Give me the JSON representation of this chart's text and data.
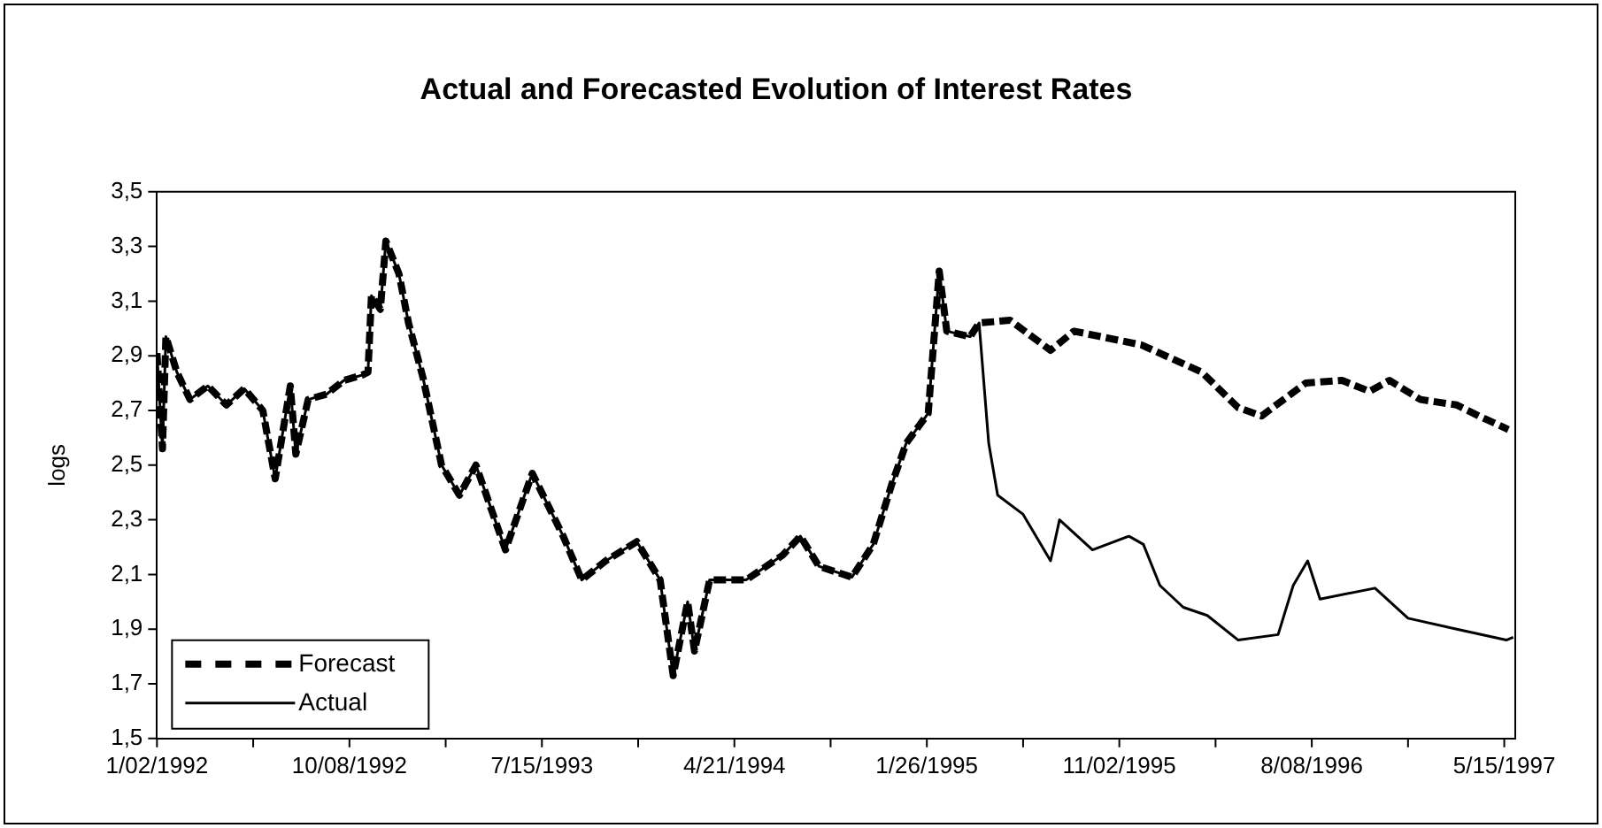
{
  "chart_data": {
    "type": "line",
    "title": "Actual and Forecasted Evolution of Interest Rates",
    "ylabel": "logs",
    "xlim": [
      "1992-01-02",
      "1997-05-31"
    ],
    "xticks": [
      {
        "value": "1992-01-02",
        "label": "1/02/1992"
      },
      {
        "value": "1992-05-21",
        "label": null
      },
      {
        "value": "1992-10-08",
        "label": "10/08/1992"
      },
      {
        "value": "1993-02-25",
        "label": null
      },
      {
        "value": "1993-07-15",
        "label": "7/15/1993"
      },
      {
        "value": "1993-12-02",
        "label": null
      },
      {
        "value": "1994-04-21",
        "label": "4/21/1994"
      },
      {
        "value": "1994-09-08",
        "label": null
      },
      {
        "value": "1995-01-26",
        "label": "1/26/1995"
      },
      {
        "value": "1995-06-15",
        "label": null
      },
      {
        "value": "1995-11-02",
        "label": "11/02/1995"
      },
      {
        "value": "1996-03-21",
        "label": null
      },
      {
        "value": "1996-08-08",
        "label": "8/08/1996"
      },
      {
        "value": "1996-12-26",
        "label": null
      },
      {
        "value": "1997-05-15",
        "label": "5/15/1997"
      }
    ],
    "ylim": [
      1.5,
      3.5
    ],
    "yticks": [
      {
        "value": 1.5,
        "label": "1,5"
      },
      {
        "value": 1.7,
        "label": "1,7"
      },
      {
        "value": 1.9,
        "label": "1,9"
      },
      {
        "value": 2.1,
        "label": "2,1"
      },
      {
        "value": 2.3,
        "label": "2,3"
      },
      {
        "value": 2.5,
        "label": "2,5"
      },
      {
        "value": 2.7,
        "label": "2,7"
      },
      {
        "value": 2.9,
        "label": "2,9"
      },
      {
        "value": 3.1,
        "label": "3,1"
      },
      {
        "value": 3.3,
        "label": "3,3"
      },
      {
        "value": 3.5,
        "label": "3,5"
      }
    ],
    "grid": false,
    "legend": "bottom left",
    "marker": "none",
    "series": [
      {
        "name": "Forecast",
        "color": "#000000",
        "line_style": "dashed",
        "x": [
          "1992-01-02",
          "1992-01-10",
          "1992-01-15",
          "1992-01-31",
          "1992-02-19",
          "1992-03-16",
          "1992-04-12",
          "1992-05-08",
          "1992-06-04",
          "1992-06-22",
          "1992-07-14",
          "1992-07-22",
          "1992-08-09",
          "1992-09-05",
          "1992-09-30",
          "1992-10-27",
          "1992-11-04",
          "1992-11-09",
          "1992-11-22",
          "1992-11-30",
          "1992-12-19",
          "1993-01-02",
          "1993-01-23",
          "1993-02-19",
          "1993-03-17",
          "1993-04-10",
          "1993-05-23",
          "1993-07-01",
          "1993-08-15",
          "1993-09-11",
          "1993-10-16",
          "1993-11-30",
          "1994-01-03",
          "1994-01-22",
          "1994-02-12",
          "1994-02-22",
          "1994-03-16",
          "1994-05-08",
          "1994-06-30",
          "1994-07-26",
          "1994-08-22",
          "1994-10-09",
          "1994-11-09",
          "1994-12-06",
          "1994-12-27",
          "1995-01-28",
          "1995-02-13",
          "1995-02-24",
          "1995-03-30",
          "1995-04-12",
          "1995-05-27",
          "1995-07-25",
          "1995-08-28",
          "1995-12-04",
          "1996-03-01",
          "1996-04-23",
          "1996-05-27",
          "1996-07-30",
          "1996-09-21",
          "1996-10-31",
          "1996-11-29",
          "1997-01-13",
          "1997-03-07",
          "1997-04-08",
          "1997-05-21"
        ],
        "values": [
          2.91,
          2.56,
          2.97,
          2.84,
          2.74,
          2.79,
          2.72,
          2.78,
          2.7,
          2.45,
          2.79,
          2.54,
          2.74,
          2.76,
          2.81,
          2.83,
          2.84,
          3.12,
          3.07,
          3.32,
          3.2,
          3.02,
          2.82,
          2.5,
          2.39,
          2.5,
          2.19,
          2.47,
          2.24,
          2.08,
          2.15,
          2.22,
          2.08,
          1.73,
          2.0,
          1.82,
          2.08,
          2.08,
          2.17,
          2.24,
          2.13,
          2.09,
          2.21,
          2.43,
          2.58,
          2.69,
          3.21,
          2.99,
          2.97,
          3.02,
          3.03,
          2.92,
          2.99,
          2.94,
          2.84,
          2.71,
          2.68,
          2.8,
          2.81,
          2.77,
          2.81,
          2.74,
          2.72,
          2.68,
          2.63
        ]
      },
      {
        "name": "Actual",
        "color": "#000000",
        "line_style": "solid",
        "x": [
          "1992-01-02",
          "1992-01-10",
          "1992-01-15",
          "1992-01-31",
          "1992-02-19",
          "1992-03-16",
          "1992-04-12",
          "1992-05-08",
          "1992-06-04",
          "1992-06-22",
          "1992-07-14",
          "1992-07-22",
          "1992-08-09",
          "1992-09-05",
          "1992-09-30",
          "1992-10-27",
          "1992-11-04",
          "1992-11-09",
          "1992-11-22",
          "1992-11-30",
          "1992-12-19",
          "1993-01-02",
          "1993-01-23",
          "1993-02-19",
          "1993-03-17",
          "1993-04-10",
          "1993-05-23",
          "1993-07-01",
          "1993-08-15",
          "1993-09-11",
          "1993-10-16",
          "1993-11-30",
          "1994-01-03",
          "1994-01-22",
          "1994-02-12",
          "1994-02-22",
          "1994-03-16",
          "1994-05-08",
          "1994-06-30",
          "1994-07-26",
          "1994-08-22",
          "1994-10-09",
          "1994-11-09",
          "1994-12-06",
          "1994-12-27",
          "1995-01-28",
          "1995-02-13",
          "1995-02-24",
          "1995-03-30",
          "1995-04-12",
          "1995-04-26",
          "1995-05-09",
          "1995-06-15",
          "1995-07-25",
          "1995-08-07",
          "1995-09-24",
          "1995-11-16",
          "1995-12-07",
          "1995-12-31",
          "1996-02-03",
          "1996-03-09",
          "1996-04-23",
          "1996-06-20",
          "1996-07-12",
          "1996-08-02",
          "1996-08-20",
          "1996-11-08",
          "1996-12-26",
          "1997-03-07",
          "1997-05-18",
          "1997-05-28"
        ],
        "values": [
          2.91,
          2.56,
          2.97,
          2.84,
          2.74,
          2.79,
          2.72,
          2.78,
          2.7,
          2.45,
          2.79,
          2.54,
          2.74,
          2.76,
          2.81,
          2.83,
          2.84,
          3.12,
          3.07,
          3.32,
          3.2,
          3.02,
          2.82,
          2.5,
          2.39,
          2.5,
          2.19,
          2.47,
          2.24,
          2.08,
          2.15,
          2.22,
          2.08,
          1.73,
          2.0,
          1.82,
          2.08,
          2.08,
          2.17,
          2.24,
          2.13,
          2.09,
          2.21,
          2.43,
          2.58,
          2.69,
          3.21,
          2.99,
          2.97,
          3.02,
          2.58,
          2.39,
          2.32,
          2.15,
          2.3,
          2.19,
          2.24,
          2.21,
          2.06,
          1.98,
          1.95,
          1.86,
          1.88,
          2.06,
          2.15,
          2.01,
          2.05,
          1.94,
          1.9,
          1.86,
          1.87
        ]
      }
    ]
  }
}
